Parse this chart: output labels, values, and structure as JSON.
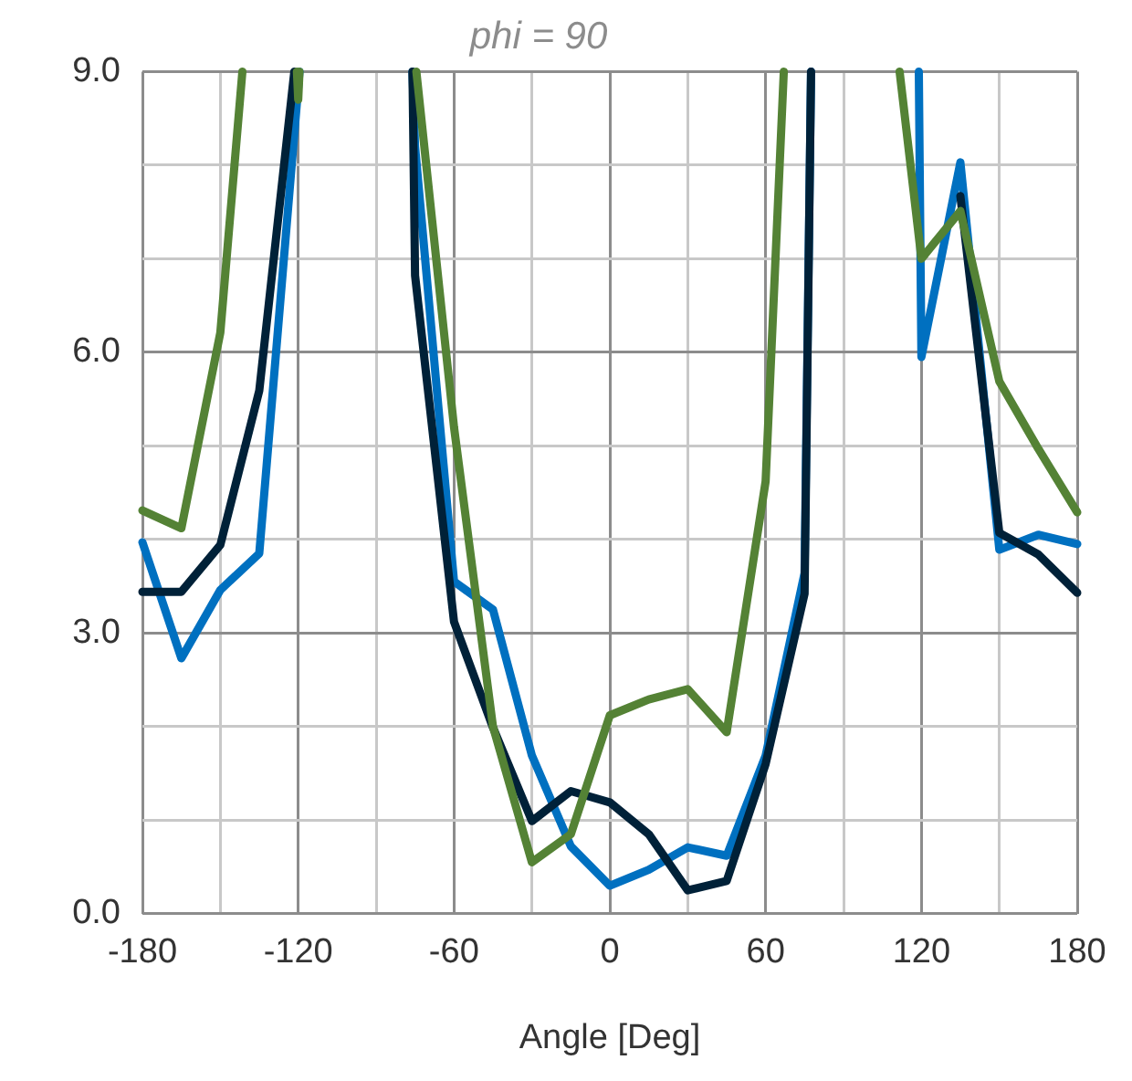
{
  "chart_data": {
    "type": "line",
    "title": "phi = 90",
    "xlabel": "Angle [Deg]",
    "xlim": [
      -180,
      180
    ],
    "ylim": [
      0,
      9
    ],
    "xticks": [
      -180,
      {
        "value": -150,
        "label": null
      },
      -120,
      {
        "value": -90,
        "label": null
      },
      -60,
      {
        "value": -30,
        "label": null
      },
      0,
      {
        "value": 30,
        "label": null
      },
      60,
      {
        "value": 90,
        "label": null
      },
      120,
      {
        "value": 150,
        "label": null
      },
      180
    ],
    "yticks": [
      {
        "value": 0,
        "label": "0.0"
      },
      {
        "value": 1,
        "label": null
      },
      {
        "value": 2,
        "label": null
      },
      {
        "value": 3,
        "label": "3.0"
      },
      {
        "value": 4,
        "label": null
      },
      {
        "value": 5,
        "label": null
      },
      {
        "value": 6,
        "label": "6.0"
      },
      {
        "value": 7,
        "label": null
      },
      {
        "value": 8,
        "label": null
      },
      {
        "value": 9,
        "label": "9.0"
      }
    ],
    "grid": true,
    "legend": false,
    "marker": "none",
    "line_style": "solid",
    "series": [
      {
        "color": "#548235",
        "x": [
          -180,
          -165,
          -150,
          -141.5,
          -130,
          -120.5,
          -120,
          -119.5,
          -100,
          -74.5,
          -60,
          -45,
          -30,
          -15,
          0,
          15,
          30,
          45,
          60,
          67,
          90,
          111.6,
          120,
          135,
          150,
          165,
          180
        ],
        "values": [
          4.31,
          4.12,
          6.21,
          9,
          null,
          9,
          8.7,
          9,
          null,
          9,
          5.2,
          2.0,
          0.55,
          0.85,
          2.12,
          2.29,
          2.4,
          1.94,
          4.62,
          9,
          null,
          9,
          7.0,
          7.51,
          5.69,
          4.97,
          4.29
        ]
      },
      {
        "color": "#002138",
        "x": [
          -180,
          -165,
          -150,
          -135,
          -121.5,
          -100,
          -76,
          -75,
          -60,
          -45,
          -30,
          -15,
          0,
          15,
          30,
          45,
          60,
          75,
          77.5,
          100,
          135,
          150,
          165,
          180
        ],
        "values": [
          3.44,
          3.44,
          3.94,
          5.59,
          9,
          null,
          9,
          6.82,
          3.12,
          1.99,
          0.99,
          1.31,
          1.19,
          0.85,
          0.25,
          0.35,
          1.6,
          3.42,
          9,
          null,
          7.67,
          4.07,
          3.84,
          3.43
        ]
      },
      {
        "color": "#0070c0",
        "x": [
          -180,
          -165,
          -150,
          -135,
          -119.5,
          -100,
          -76,
          -75,
          -60,
          -45,
          -30,
          -15,
          0,
          15,
          30,
          45,
          60,
          75,
          77.5,
          100,
          119,
          120,
          135,
          150,
          165,
          180
        ],
        "values": [
          3.97,
          2.73,
          3.46,
          3.85,
          9,
          null,
          9,
          8.2,
          3.55,
          3.25,
          1.69,
          0.72,
          0.3,
          0.47,
          0.71,
          0.62,
          1.69,
          3.64,
          9,
          null,
          9,
          5.95,
          8.03,
          3.89,
          4.05,
          3.95
        ]
      }
    ]
  }
}
